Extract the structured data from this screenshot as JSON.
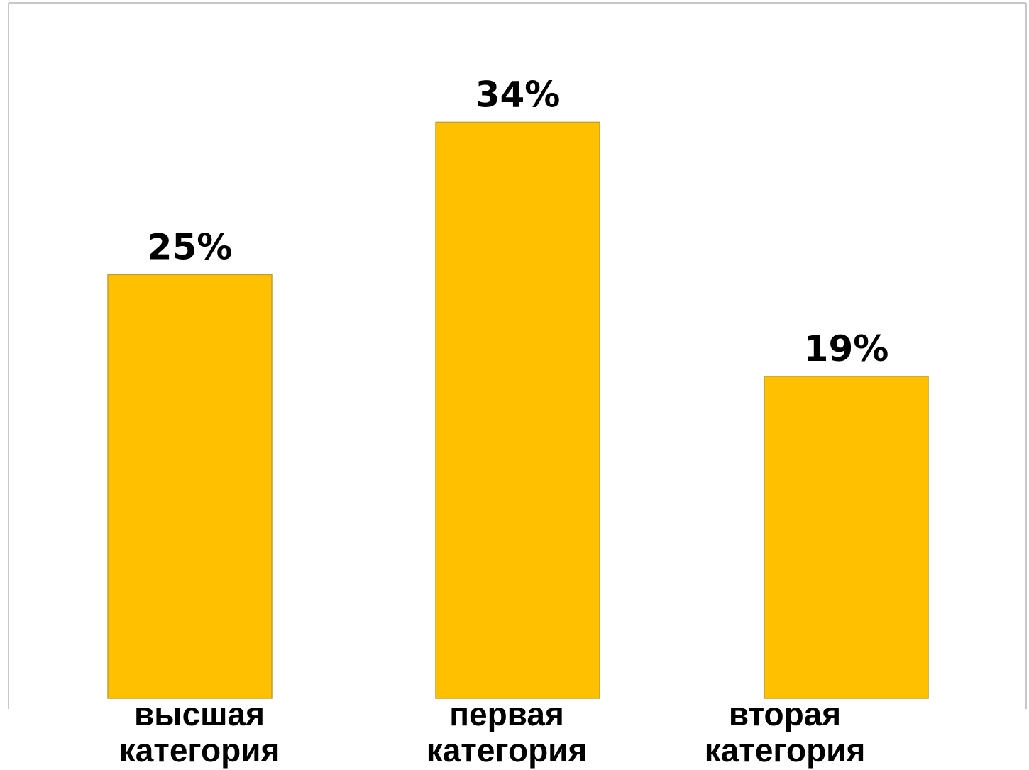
{
  "chart_data": {
    "type": "bar",
    "categories": [
      "высшая\nкатегория",
      "первая\nкатегория",
      "вторая\nкатегория"
    ],
    "values": [
      25,
      34,
      19
    ],
    "value_labels": [
      "25%",
      "34%",
      "19%"
    ],
    "unit": "%",
    "title": "",
    "xlabel": "",
    "ylabel": "",
    "ylim": [
      0,
      35
    ],
    "grid": false,
    "legend": "none",
    "colors": {
      "bar": "#FFC000",
      "bar_edge": "#BFA030",
      "frame": "#C8C8C8",
      "text": "#000000"
    }
  }
}
